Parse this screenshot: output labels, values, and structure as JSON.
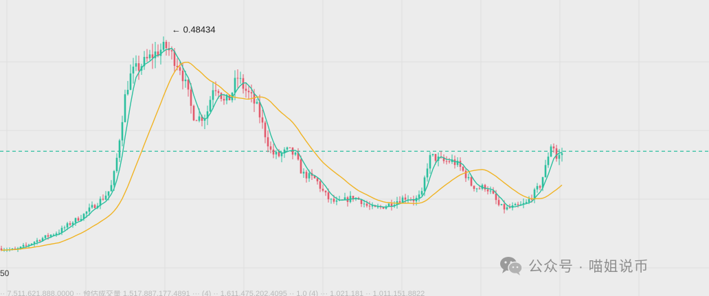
{
  "chart_data": {
    "type": "candlestick",
    "title": "",
    "xlabel": "",
    "ylabel": "",
    "ylim": [
      0.08,
      0.5
    ],
    "grid": true,
    "annotation": {
      "text": "← 0.48434",
      "value": 0.48434
    },
    "horizontal_line": {
      "value": 0.278,
      "style": "dashed",
      "color": "#2bbf9e"
    },
    "left_axis_fragment": "50",
    "colors": {
      "up": "#2bbf9e",
      "down": "#e2596b",
      "ma_short": "#2bbf9e",
      "ma_long": "#f0b323",
      "background": "#ececec",
      "grid": "#dedede"
    },
    "series": [
      {
        "name": "ma_short",
        "type": "line"
      },
      {
        "name": "ma_long",
        "type": "line"
      }
    ],
    "anchors": [
      [
        0,
        0.113
      ],
      [
        20,
        0.11
      ],
      [
        40,
        0.12
      ],
      [
        55,
        0.128
      ],
      [
        70,
        0.135
      ],
      [
        85,
        0.142
      ],
      [
        100,
        0.155
      ],
      [
        118,
        0.168
      ],
      [
        135,
        0.185
      ],
      [
        150,
        0.2
      ],
      [
        160,
        0.215
      ],
      [
        167,
        0.25
      ],
      [
        175,
        0.32
      ],
      [
        182,
        0.38
      ],
      [
        190,
        0.41
      ],
      [
        200,
        0.42
      ],
      [
        210,
        0.43
      ],
      [
        220,
        0.44
      ],
      [
        232,
        0.45
      ],
      [
        242,
        0.455
      ],
      [
        250,
        0.44
      ],
      [
        262,
        0.42
      ],
      [
        272,
        0.38
      ],
      [
        280,
        0.34
      ],
      [
        290,
        0.335
      ],
      [
        300,
        0.34
      ],
      [
        310,
        0.39
      ],
      [
        318,
        0.385
      ],
      [
        326,
        0.36
      ],
      [
        335,
        0.37
      ],
      [
        345,
        0.405
      ],
      [
        355,
        0.385
      ],
      [
        365,
        0.37
      ],
      [
        375,
        0.35
      ],
      [
        385,
        0.31
      ],
      [
        395,
        0.275
      ],
      [
        405,
        0.27
      ],
      [
        420,
        0.28
      ],
      [
        430,
        0.27
      ],
      [
        440,
        0.24
      ],
      [
        450,
        0.235
      ],
      [
        460,
        0.23
      ],
      [
        470,
        0.21
      ],
      [
        480,
        0.195
      ],
      [
        492,
        0.19
      ],
      [
        505,
        0.196
      ],
      [
        515,
        0.2
      ],
      [
        525,
        0.195
      ],
      [
        535,
        0.185
      ],
      [
        545,
        0.18
      ],
      [
        555,
        0.183
      ],
      [
        568,
        0.188
      ],
      [
        580,
        0.195
      ],
      [
        592,
        0.2
      ],
      [
        605,
        0.195
      ],
      [
        615,
        0.205
      ],
      [
        622,
        0.25
      ],
      [
        628,
        0.27
      ],
      [
        638,
        0.265
      ],
      [
        648,
        0.26
      ],
      [
        658,
        0.262
      ],
      [
        668,
        0.255
      ],
      [
        678,
        0.24
      ],
      [
        688,
        0.22
      ],
      [
        698,
        0.215
      ],
      [
        708,
        0.218
      ],
      [
        718,
        0.205
      ],
      [
        728,
        0.185
      ],
      [
        738,
        0.18
      ],
      [
        748,
        0.183
      ],
      [
        758,
        0.185
      ],
      [
        768,
        0.19
      ],
      [
        778,
        0.205
      ],
      [
        788,
        0.22
      ],
      [
        797,
        0.255
      ],
      [
        803,
        0.29
      ],
      [
        808,
        0.285
      ],
      [
        812,
        0.265
      ],
      [
        820,
        0.275
      ]
    ],
    "candle_count": 205,
    "seed": 7
  },
  "watermark": {
    "text": "公众号 · 喵姐说币",
    "icon": "wechat-icon"
  },
  "bottom_text": "·· 7,511,621,888.0000 ··  预估成交量 1,517,887,177.4891 ··· (4) ·· 1,611,475,202.4095 ·· 1,0 (4) ··· 1,021,181 ·· 1,011,151,8822"
}
